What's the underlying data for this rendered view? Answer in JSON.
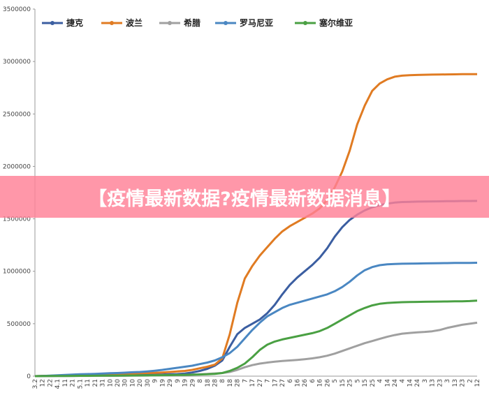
{
  "chart_data": {
    "type": "line",
    "categories": [
      "3.2",
      "12",
      "22",
      "4.1",
      "11",
      "21",
      "5.1",
      "11",
      "21",
      "31",
      "10",
      "20",
      "30",
      "10",
      "20",
      "30",
      "9",
      "19",
      "29",
      "9",
      "19",
      "29",
      "8",
      "18",
      "28",
      "8",
      "18",
      "28",
      "7",
      "17",
      "27",
      "7",
      "17",
      "27",
      "6",
      "16",
      "26",
      "6",
      "16",
      "26",
      "5",
      "15",
      "25",
      "5",
      "15",
      "25",
      "4",
      "14",
      "24",
      "4",
      "14",
      "24",
      "3",
      "13",
      "23",
      "3",
      "13",
      "23",
      "2",
      "12"
    ],
    "series": [
      {
        "name": "捷克",
        "color": "#3b5ea1",
        "values": [
          0,
          1000,
          2000,
          3000,
          5000,
          6000,
          7000,
          8000,
          8000,
          9000,
          9000,
          10000,
          10000,
          11000,
          12000,
          13000,
          14000,
          16000,
          18000,
          20000,
          25000,
          35000,
          50000,
          70000,
          100000,
          150000,
          280000,
          400000,
          460000,
          500000,
          540000,
          600000,
          680000,
          780000,
          870000,
          940000,
          1000000,
          1060000,
          1130000,
          1220000,
          1330000,
          1420000,
          1490000,
          1540000,
          1580000,
          1610000,
          1630000,
          1645000,
          1655000,
          1660000,
          1662000,
          1664000,
          1665000,
          1666000,
          1667000,
          1668000,
          1669000,
          1670000,
          1670000,
          1671000
        ]
      },
      {
        "name": "波兰",
        "color": "#e07b22",
        "values": [
          0,
          1000,
          3000,
          5000,
          8000,
          10000,
          12000,
          14000,
          16000,
          18000,
          20000,
          22000,
          24000,
          26000,
          28000,
          30000,
          32000,
          35000,
          40000,
          45000,
          50000,
          60000,
          75000,
          90000,
          110000,
          170000,
          400000,
          700000,
          930000,
          1050000,
          1150000,
          1230000,
          1310000,
          1380000,
          1430000,
          1470000,
          1510000,
          1550000,
          1600000,
          1680000,
          1800000,
          1950000,
          2150000,
          2400000,
          2580000,
          2720000,
          2790000,
          2830000,
          2855000,
          2865000,
          2870000,
          2872000,
          2874000,
          2875000,
          2876000,
          2877000,
          2878000,
          2879000,
          2880000,
          2880000
        ]
      },
      {
        "name": "希腊",
        "color": "#a0a0a0",
        "values": [
          0,
          0,
          500,
          1000,
          1500,
          2000,
          2500,
          2800,
          3000,
          3200,
          3500,
          3800,
          4000,
          4500,
          5000,
          6000,
          7000,
          8000,
          9000,
          10000,
          12000,
          15000,
          18000,
          22000,
          26000,
          30000,
          40000,
          60000,
          85000,
          105000,
          120000,
          130000,
          138000,
          145000,
          150000,
          155000,
          162000,
          170000,
          180000,
          195000,
          215000,
          240000,
          265000,
          290000,
          315000,
          335000,
          355000,
          375000,
          392000,
          405000,
          412000,
          418000,
          422000,
          428000,
          440000,
          460000,
          475000,
          490000,
          500000,
          510000
        ]
      },
      {
        "name": "罗马尼亚",
        "color": "#4a87c2",
        "values": [
          0,
          2000,
          5000,
          8000,
          12000,
          15000,
          18000,
          20000,
          22000,
          25000,
          28000,
          30000,
          33000,
          37000,
          40000,
          45000,
          52000,
          60000,
          70000,
          80000,
          90000,
          100000,
          115000,
          130000,
          150000,
          180000,
          220000,
          280000,
          360000,
          440000,
          510000,
          570000,
          610000,
          650000,
          680000,
          700000,
          720000,
          740000,
          760000,
          780000,
          810000,
          850000,
          900000,
          960000,
          1010000,
          1040000,
          1058000,
          1066000,
          1070000,
          1072000,
          1073000,
          1074000,
          1075000,
          1076000,
          1077000,
          1078000,
          1079000,
          1080000,
          1080000,
          1081000
        ]
      },
      {
        "name": "塞尔维亚",
        "color": "#4aa043",
        "values": [
          0,
          500,
          1000,
          1500,
          2000,
          2500,
          3000,
          3500,
          4000,
          4500,
          5000,
          5500,
          6000,
          6500,
          7000,
          7500,
          8000,
          9000,
          10000,
          11000,
          12000,
          14000,
          16000,
          18000,
          22000,
          30000,
          50000,
          80000,
          120000,
          180000,
          250000,
          300000,
          330000,
          350000,
          365000,
          380000,
          395000,
          410000,
          430000,
          460000,
          500000,
          540000,
          580000,
          620000,
          650000,
          675000,
          690000,
          698000,
          702000,
          705000,
          707000,
          708000,
          709000,
          710000,
          711000,
          712000,
          713000,
          714000,
          716000,
          720000
        ]
      }
    ],
    "ylim": [
      0,
      3500000
    ],
    "yticks": [
      0,
      500000,
      1000000,
      1500000,
      2000000,
      2500000,
      3000000,
      3500000
    ],
    "legend": "top"
  },
  "banner": "【疫情最新数据?疫情最新数据消息】"
}
